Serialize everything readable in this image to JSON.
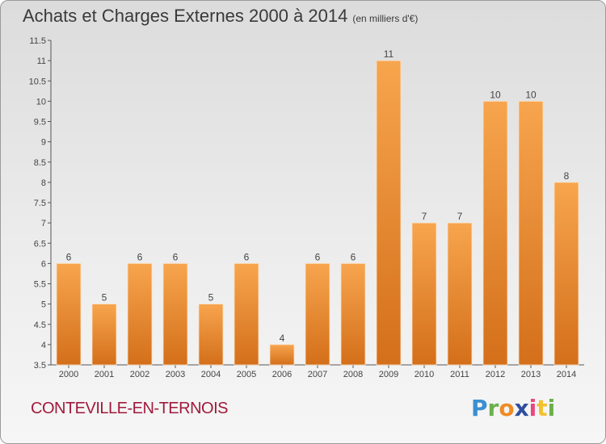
{
  "title": "Achats et Charges Externes 2000 à 2014",
  "subtitle": "(en milliers d'€)",
  "commune": "CONTEVILLE-EN-TERNOIS",
  "logo": {
    "text": "Proxiti",
    "letters": [
      "P",
      "r",
      "o",
      "x",
      "i",
      "t",
      "i"
    ],
    "letter_colors": [
      "#3a8fd1",
      "#6ab04c",
      "#f08a24",
      "#2e4f9e",
      "#e64980",
      "#f2c12e",
      "#6ab04c"
    ]
  },
  "colors": {
    "bar_top": "#f7a54e",
    "bar_bottom": "#d46f1a",
    "title": "#3a3a3a",
    "commune": "#a01a3c"
  },
  "chart_data": {
    "type": "bar",
    "title": "Achats et Charges Externes 2000 à 2014",
    "subtitle": "(en milliers d'€)",
    "categories": [
      "2000",
      "2001",
      "2002",
      "2003",
      "2004",
      "2005",
      "2006",
      "2007",
      "2008",
      "2009",
      "2010",
      "2011",
      "2012",
      "2013",
      "2014"
    ],
    "values": [
      6,
      5,
      6,
      6,
      5,
      6,
      4,
      6,
      6,
      11,
      7,
      7,
      10,
      10,
      8
    ],
    "data_labels": [
      "6",
      "5",
      "6",
      "6",
      "5",
      "6",
      "4",
      "6",
      "6",
      "11",
      "7",
      "7",
      "10",
      "10",
      "8"
    ],
    "ylim": [
      3.5,
      11.5
    ],
    "yticks": [
      "3.5",
      "4",
      "4.5",
      "5",
      "5.5",
      "6",
      "6.5",
      "7",
      "7.5",
      "8",
      "8.5",
      "9",
      "9.5",
      "10",
      "10.5",
      "11",
      "11.5"
    ],
    "grid": false,
    "legend": "none"
  }
}
